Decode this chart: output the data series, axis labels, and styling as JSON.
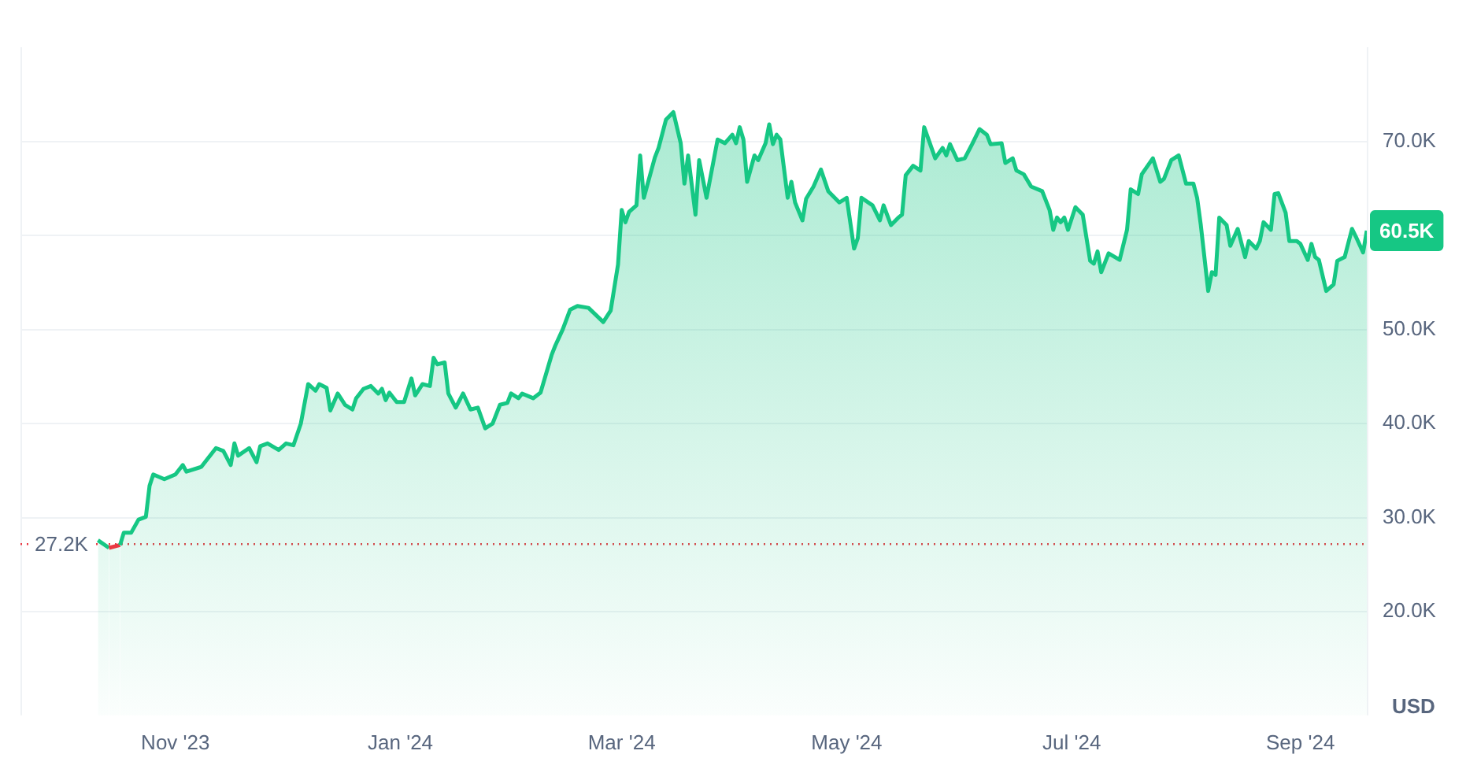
{
  "chart_data": {
    "type": "area",
    "ylabel": "USD",
    "x": [
      "2023-10-11",
      "2023-10-14",
      "2023-10-17",
      "2023-10-18",
      "2023-10-20",
      "2023-10-22",
      "2023-10-24",
      "2023-10-25",
      "2023-10-26",
      "2023-10-29",
      "2023-11-01",
      "2023-11-03",
      "2023-11-04",
      "2023-11-08",
      "2023-11-12",
      "2023-11-14",
      "2023-11-16",
      "2023-11-17",
      "2023-11-18",
      "2023-11-21",
      "2023-11-23",
      "2023-11-24",
      "2023-11-26",
      "2023-11-29",
      "2023-12-01",
      "2023-12-03",
      "2023-12-05",
      "2023-12-07",
      "2023-12-09",
      "2023-12-10",
      "2023-12-12",
      "2023-12-13",
      "2023-12-15",
      "2023-12-17",
      "2023-12-19",
      "2023-12-20",
      "2023-12-22",
      "2023-12-24",
      "2023-12-26",
      "2023-12-27",
      "2023-12-28",
      "2023-12-29",
      "2023-12-31",
      "2024-01-02",
      "2024-01-04",
      "2024-01-05",
      "2024-01-07",
      "2024-01-09",
      "2024-01-10",
      "2024-01-11",
      "2024-01-13",
      "2024-01-14",
      "2024-01-16",
      "2024-01-18",
      "2024-01-20",
      "2024-01-22",
      "2024-01-24",
      "2024-01-26",
      "2024-01-28",
      "2024-01-30",
      "2024-01-31",
      "2024-02-02",
      "2024-02-03",
      "2024-02-06",
      "2024-02-08",
      "2024-02-11",
      "2024-02-12",
      "2024-02-14",
      "2024-02-16",
      "2024-02-18",
      "2024-02-21",
      "2024-02-25",
      "2024-02-27",
      "2024-02-29",
      "2024-03-01",
      "2024-03-02",
      "2024-03-03",
      "2024-03-05",
      "2024-03-06",
      "2024-03-07",
      "2024-03-10",
      "2024-03-11",
      "2024-03-13",
      "2024-03-15",
      "2024-03-17",
      "2024-03-18",
      "2024-03-19",
      "2024-03-21",
      "2024-03-22",
      "2024-03-24",
      "2024-03-27",
      "2024-03-29",
      "2024-03-31",
      "2024-04-01",
      "2024-04-02",
      "2024-04-03",
      "2024-04-04",
      "2024-04-06",
      "2024-04-07",
      "2024-04-09",
      "2024-04-10",
      "2024-04-11",
      "2024-04-12",
      "2024-04-13",
      "2024-04-15",
      "2024-04-16",
      "2024-04-17",
      "2024-04-19",
      "2024-04-20",
      "2024-04-22",
      "2024-04-24",
      "2024-04-26",
      "2024-04-29",
      "2024-05-01",
      "2024-05-03",
      "2024-05-04",
      "2024-05-05",
      "2024-05-08",
      "2024-05-10",
      "2024-05-11",
      "2024-05-13",
      "2024-05-15",
      "2024-05-16",
      "2024-05-17",
      "2024-05-19",
      "2024-05-21",
      "2024-05-22",
      "2024-05-25",
      "2024-05-27",
      "2024-05-28",
      "2024-05-29",
      "2024-05-31",
      "2024-06-02",
      "2024-06-04",
      "2024-06-06",
      "2024-06-08",
      "2024-06-09",
      "2024-06-12",
      "2024-06-13",
      "2024-06-15",
      "2024-06-16",
      "2024-06-18",
      "2024-06-20",
      "2024-06-23",
      "2024-06-25",
      "2024-06-26",
      "2024-06-27",
      "2024-06-28",
      "2024-06-29",
      "2024-06-30",
      "2024-07-02",
      "2024-07-04",
      "2024-07-06",
      "2024-07-07",
      "2024-07-08",
      "2024-07-09",
      "2024-07-11",
      "2024-07-14",
      "2024-07-16",
      "2024-07-17",
      "2024-07-19",
      "2024-07-20",
      "2024-07-23",
      "2024-07-25",
      "2024-07-26",
      "2024-07-28",
      "2024-07-30",
      "2024-08-01",
      "2024-08-03",
      "2024-08-04",
      "2024-08-05",
      "2024-08-07",
      "2024-08-08",
      "2024-08-09",
      "2024-08-10",
      "2024-08-12",
      "2024-08-13",
      "2024-08-15",
      "2024-08-17",
      "2024-08-18",
      "2024-08-20",
      "2024-08-21",
      "2024-08-22",
      "2024-08-24",
      "2024-08-25",
      "2024-08-26",
      "2024-08-28",
      "2024-08-29",
      "2024-08-31",
      "2024-09-01",
      "2024-09-03",
      "2024-09-04",
      "2024-09-05",
      "2024-09-06",
      "2024-09-08",
      "2024-09-10",
      "2024-09-11",
      "2024-09-13",
      "2024-09-15",
      "2024-09-16",
      "2024-09-18",
      "2024-09-19"
    ],
    "series": [
      {
        "color": "#16c784",
        "values": [
          27600,
          26800,
          27100,
          28400,
          28400,
          29800,
          30100,
          33400,
          34600,
          34100,
          34600,
          35600,
          34900,
          35400,
          37400,
          37100,
          35600,
          37900,
          36600,
          37400,
          35900,
          37600,
          37900,
          37200,
          37900,
          37700,
          40000,
          44200,
          43500,
          44200,
          43800,
          41400,
          43200,
          42000,
          41500,
          42700,
          43700,
          44000,
          43200,
          43700,
          42500,
          43300,
          42300,
          42300,
          44800,
          43000,
          44200,
          44000,
          47000,
          46300,
          46500,
          43200,
          41700,
          43200,
          41500,
          41700,
          39500,
          40000,
          42000,
          42200,
          43200,
          42700,
          43200,
          42700,
          43300,
          47300,
          48300,
          50000,
          52100,
          52500,
          52300,
          50800,
          52000,
          56900,
          62700,
          61400,
          62500,
          63200,
          68500,
          64000,
          68300,
          69300,
          72300,
          73100,
          69800,
          65500,
          68500,
          62200,
          68000,
          64000,
          70200,
          69800,
          70700,
          69800,
          71500,
          70200,
          65700,
          68500,
          68000,
          69800,
          71800,
          69700,
          70700,
          70200,
          64000,
          65700,
          63500,
          61600,
          63900,
          65200,
          67000,
          64700,
          63500,
          64000,
          58600,
          59700,
          64000,
          63200,
          61600,
          63200,
          61100,
          61900,
          62200,
          66400,
          67400,
          66900,
          71500,
          68200,
          69300,
          68500,
          69700,
          68000,
          68200,
          69700,
          71300,
          70700,
          69700,
          69800,
          67700,
          68200,
          66900,
          66500,
          65200,
          64700,
          62700,
          60600,
          61900,
          61400,
          61900,
          60600,
          63000,
          62200,
          57300,
          57000,
          58300,
          56100,
          58100,
          57400,
          60600,
          64900,
          64400,
          66500,
          68200,
          65700,
          66000,
          68000,
          68500,
          65500,
          65500,
          64000,
          61100,
          54100,
          56100,
          55800,
          61900,
          61100,
          58900,
          60700,
          57700,
          59400,
          58600,
          59400,
          61400,
          60600,
          64400,
          64500,
          62400,
          59400,
          59400,
          59100,
          57400,
          59100,
          57700,
          57400,
          54100,
          54800,
          57300,
          57700,
          60700,
          59900,
          58200,
          60500
        ]
      }
    ],
    "xlim": [
      "2023-09-20",
      "2024-09-19"
    ],
    "xticks": [
      {
        "value": "2023-11-01",
        "label": "Nov '23"
      },
      {
        "value": "2024-01-01",
        "label": "Jan '24"
      },
      {
        "value": "2024-03-01",
        "label": "Mar '24"
      },
      {
        "value": "2024-05-01",
        "label": "May '24"
      },
      {
        "value": "2024-07-01",
        "label": "Jul '24"
      },
      {
        "value": "2024-09-01",
        "label": "Sep '24"
      }
    ],
    "ylim": [
      9000,
      80000
    ],
    "yticks": [
      {
        "value": 20000,
        "label": "20.0K"
      },
      {
        "value": 30000,
        "label": "30.0K"
      },
      {
        "value": 40000,
        "label": "40.0K"
      },
      {
        "value": 50000,
        "label": "50.0K"
      },
      {
        "value": 60000,
        "label": null
      },
      {
        "value": 70000,
        "label": "70.0K"
      }
    ],
    "ref_lines": [
      {
        "axis": "y",
        "value": 27200,
        "label": "27.2K",
        "color": "#ea3943",
        "line_style": "dotted"
      }
    ],
    "annotations": [
      {
        "text": "60.5K",
        "x": "2024-09-19",
        "y": 60500
      }
    ],
    "grid": "y",
    "legend": false,
    "marker": "none",
    "line_style": "solid"
  }
}
